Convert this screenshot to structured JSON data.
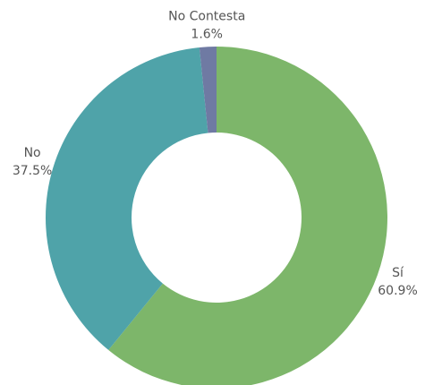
{
  "chart_data": {
    "type": "donut",
    "categories": [
      "Sí",
      "No",
      "No Contesta"
    ],
    "values": [
      60.9,
      37.5,
      1.6
    ],
    "value_labels": [
      "60.9%",
      "37.5%",
      "1.6%"
    ],
    "colors": [
      "#7db66a",
      "#4fa3a9",
      "#6f7aa3"
    ]
  }
}
